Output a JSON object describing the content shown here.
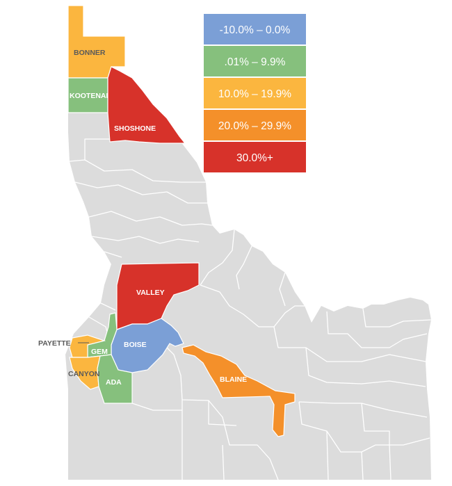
{
  "colors": {
    "land": "#dcdcdc",
    "border": "#ffffff",
    "blue": "#7b9fd6",
    "green": "#86c07d",
    "yellow": "#fbb63f",
    "orange": "#f4902a",
    "red": "#d7322a",
    "dark_label": "#5a5a5a"
  },
  "legend": [
    {
      "label": "-10.0% – 0.0%",
      "color": "#7b9fd6"
    },
    {
      "label": ".01% – 9.9%",
      "color": "#86c07d"
    },
    {
      "label": "10.0% – 19.9%",
      "color": "#fbb63f"
    },
    {
      "label": "20.0% – 29.9%",
      "color": "#f4902a"
    },
    {
      "label": "30.0%+",
      "color": "#d7322a"
    }
  ],
  "counties": {
    "bonner": {
      "name": "BONNER",
      "category": "10.0% – 19.9%",
      "color": "#fbb63f"
    },
    "kootenai": {
      "name": "KOOTENAI",
      "category": ".01% – 9.9%",
      "color": "#86c07d"
    },
    "shoshone": {
      "name": "SHOSHONE",
      "category": "30.0%+",
      "color": "#d7322a"
    },
    "valley": {
      "name": "VALLEY",
      "category": "30.0%+",
      "color": "#d7322a"
    },
    "boise": {
      "name": "BOISE",
      "category": "-10.0% – 0.0%",
      "color": "#7b9fd6"
    },
    "gem": {
      "name": "GEM",
      "category": ".01% – 9.9%",
      "color": "#86c07d"
    },
    "payette": {
      "name": "PAYETTE",
      "category": "10.0% – 19.9%",
      "color": "#fbb63f"
    },
    "canyon": {
      "name": "CANYON",
      "category": "10.0% – 19.9%",
      "color": "#fbb63f"
    },
    "ada": {
      "name": "ADA",
      "category": ".01% – 9.9%",
      "color": "#86c07d"
    },
    "blaine": {
      "name": "BLAINE",
      "category": "20.0% – 29.9%",
      "color": "#f4902a"
    }
  }
}
